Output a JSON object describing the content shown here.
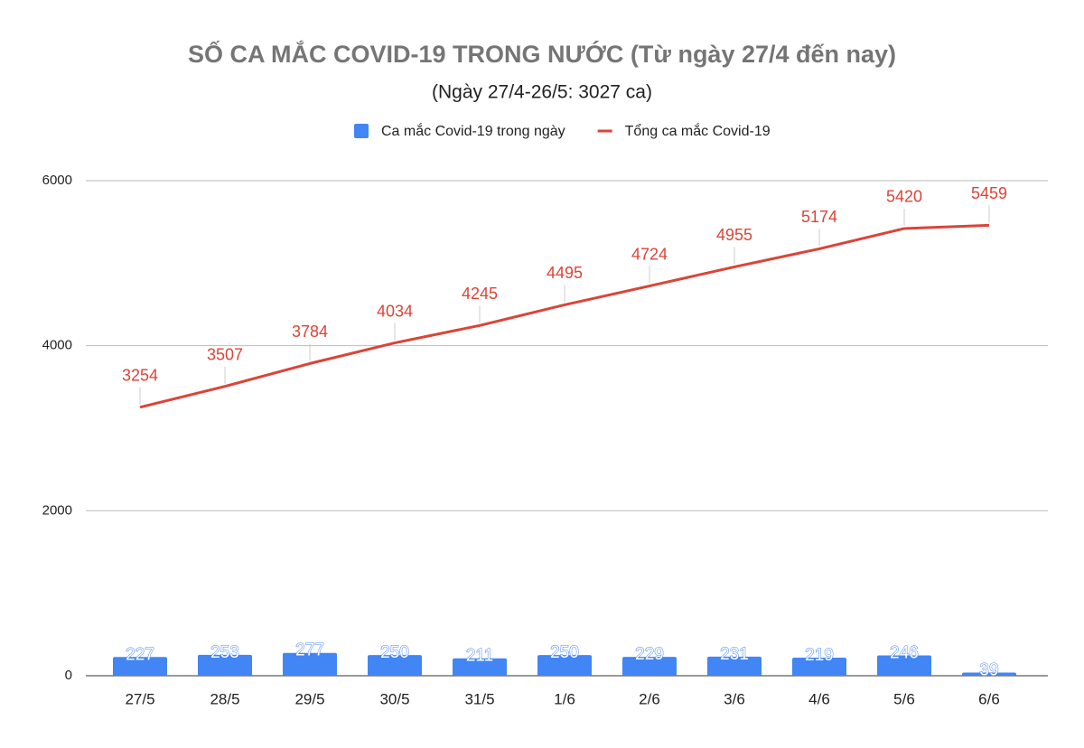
{
  "chart_data": {
    "type": "bar",
    "title": "SỐ CA MẮC COVID-19 TRONG NƯỚC (Từ ngày 27/4 đến nay)",
    "subtitle": "(Ngày 27/4-26/5: 3027 ca)",
    "categories": [
      "27/5",
      "28/5",
      "29/5",
      "30/5",
      "31/5",
      "1/6",
      "2/6",
      "3/6",
      "4/6",
      "5/6",
      "6/6"
    ],
    "series": [
      {
        "name": "Ca mắc Covid-19 trong ngày",
        "type": "bar",
        "color": "#4285f4",
        "values": [
          227,
          253,
          277,
          250,
          211,
          250,
          229,
          231,
          219,
          246,
          39
        ]
      },
      {
        "name": "Tổng ca mắc Covid-19",
        "type": "line",
        "color": "#db4437",
        "values": [
          3254,
          3507,
          3784,
          4034,
          4245,
          4495,
          4724,
          4955,
          5174,
          5420,
          5459
        ]
      }
    ],
    "ylim": [
      0,
      6000
    ],
    "yticks": [
      0,
      2000,
      4000,
      6000
    ],
    "grid": true
  }
}
